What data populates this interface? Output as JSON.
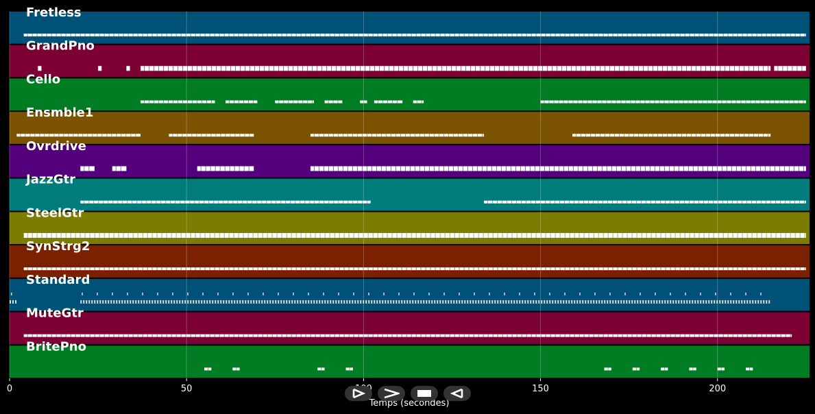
{
  "chart_data": {
    "type": "piano-roll",
    "xlabel": "Temps (secondes)",
    "xlim": [
      0,
      226
    ],
    "xticks": [
      0,
      50,
      100,
      150,
      200
    ],
    "grid": true,
    "tracks": [
      {
        "name": "Fretless",
        "color": "#005177",
        "segments": [
          [
            4,
            225
          ]
        ],
        "style": "line"
      },
      {
        "name": "GrandPno",
        "color": "#7c0033",
        "segments": [
          [
            8,
            9
          ],
          [
            25,
            26
          ],
          [
            33,
            34
          ],
          [
            37,
            215
          ],
          [
            216,
            225
          ]
        ],
        "style": "block"
      },
      {
        "name": "Cello",
        "color": "#007d22",
        "segments": [
          [
            37,
            58
          ],
          [
            61,
            70
          ],
          [
            75,
            86
          ],
          [
            89,
            94
          ],
          [
            99,
            101
          ],
          [
            103,
            111
          ],
          [
            114,
            117
          ],
          [
            150,
            225
          ]
        ],
        "style": "line"
      },
      {
        "name": "Ensmble1",
        "color": "#7c5300",
        "segments": [
          [
            2,
            37
          ],
          [
            45,
            69
          ],
          [
            85,
            134
          ],
          [
            159,
            215
          ]
        ],
        "style": "sparse"
      },
      {
        "name": "Ovrdrive",
        "color": "#54007c",
        "segments": [
          [
            20,
            24
          ],
          [
            29,
            33
          ],
          [
            53,
            69
          ],
          [
            85,
            225
          ]
        ],
        "style": "block"
      },
      {
        "name": "JazzGtr",
        "color": "#007c7c",
        "segments": [
          [
            20,
            102
          ],
          [
            134,
            225
          ]
        ],
        "style": "line"
      },
      {
        "name": "SteelGtr",
        "color": "#7c7c00",
        "segments": [
          [
            4,
            225
          ]
        ],
        "style": "block"
      },
      {
        "name": "SynStrg2",
        "color": "#7c2100",
        "segments": [
          [
            4,
            225
          ]
        ],
        "style": "line"
      },
      {
        "name": "Standard",
        "color": "#005177",
        "segments": [
          [
            0,
            2
          ],
          [
            20,
            215
          ]
        ],
        "style": "drum"
      },
      {
        "name": "MuteGtr",
        "color": "#7c0033",
        "segments": [
          [
            4,
            221
          ]
        ],
        "style": "line"
      },
      {
        "name": "BritePno",
        "color": "#007d22",
        "segments": [
          [
            55,
            57
          ],
          [
            63,
            65
          ],
          [
            87,
            89
          ],
          [
            95,
            97
          ],
          [
            168,
            170
          ],
          [
            176,
            178
          ],
          [
            184,
            186
          ],
          [
            192,
            194
          ],
          [
            200,
            202
          ],
          [
            208,
            210
          ]
        ],
        "style": "sparse"
      }
    ]
  },
  "controls": {
    "play_label": "play",
    "forward_label": "forward",
    "stop_label": "stop",
    "back_label": "back"
  }
}
